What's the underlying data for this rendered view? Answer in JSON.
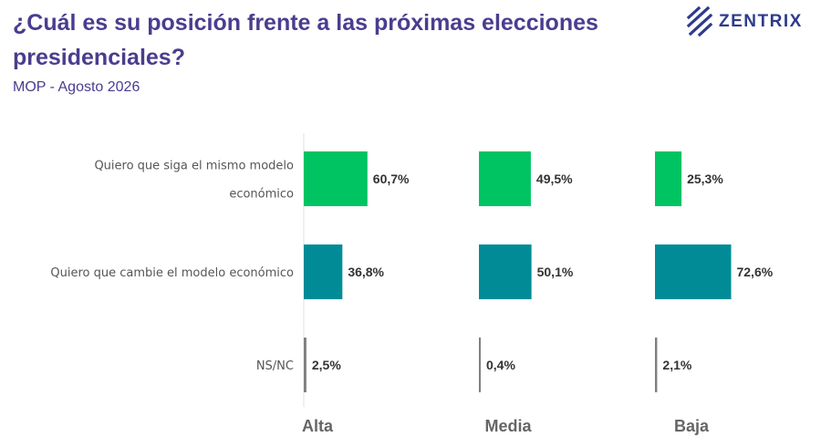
{
  "header": {
    "title": "¿Cuál es su posición frente a las próximas elecciones presidenciales?",
    "subtitle": "MOP - Agosto 2026"
  },
  "logo": {
    "text": "ZENTRIX",
    "icon": "zentrix-logo-icon",
    "color": "#2e3a8c"
  },
  "chart_data": {
    "type": "bar",
    "orientation": "horizontal",
    "categories": [
      [
        "Quiero que siga el mismo modelo",
        "económico"
      ],
      [
        "Quiero que cambie el modelo económico"
      ],
      [
        "NS/NC"
      ]
    ],
    "groups": [
      "Alta",
      "Media",
      "Baja"
    ],
    "values": [
      [
        60.7,
        49.5,
        25.3
      ],
      [
        36.8,
        50.1,
        72.6
      ],
      [
        2.5,
        0.4,
        2.1
      ]
    ],
    "value_labels": [
      [
        "60,7%",
        "49,5%",
        "25,3%"
      ],
      [
        "36,8%",
        "50,1%",
        "72,6%"
      ],
      [
        "2,5%",
        "0,4%",
        "2,1%"
      ]
    ],
    "colors": [
      "#00c462",
      "#008b96",
      "#7f7f7f"
    ],
    "xlim": [
      0,
      100
    ],
    "grid": false,
    "legend": "none"
  }
}
